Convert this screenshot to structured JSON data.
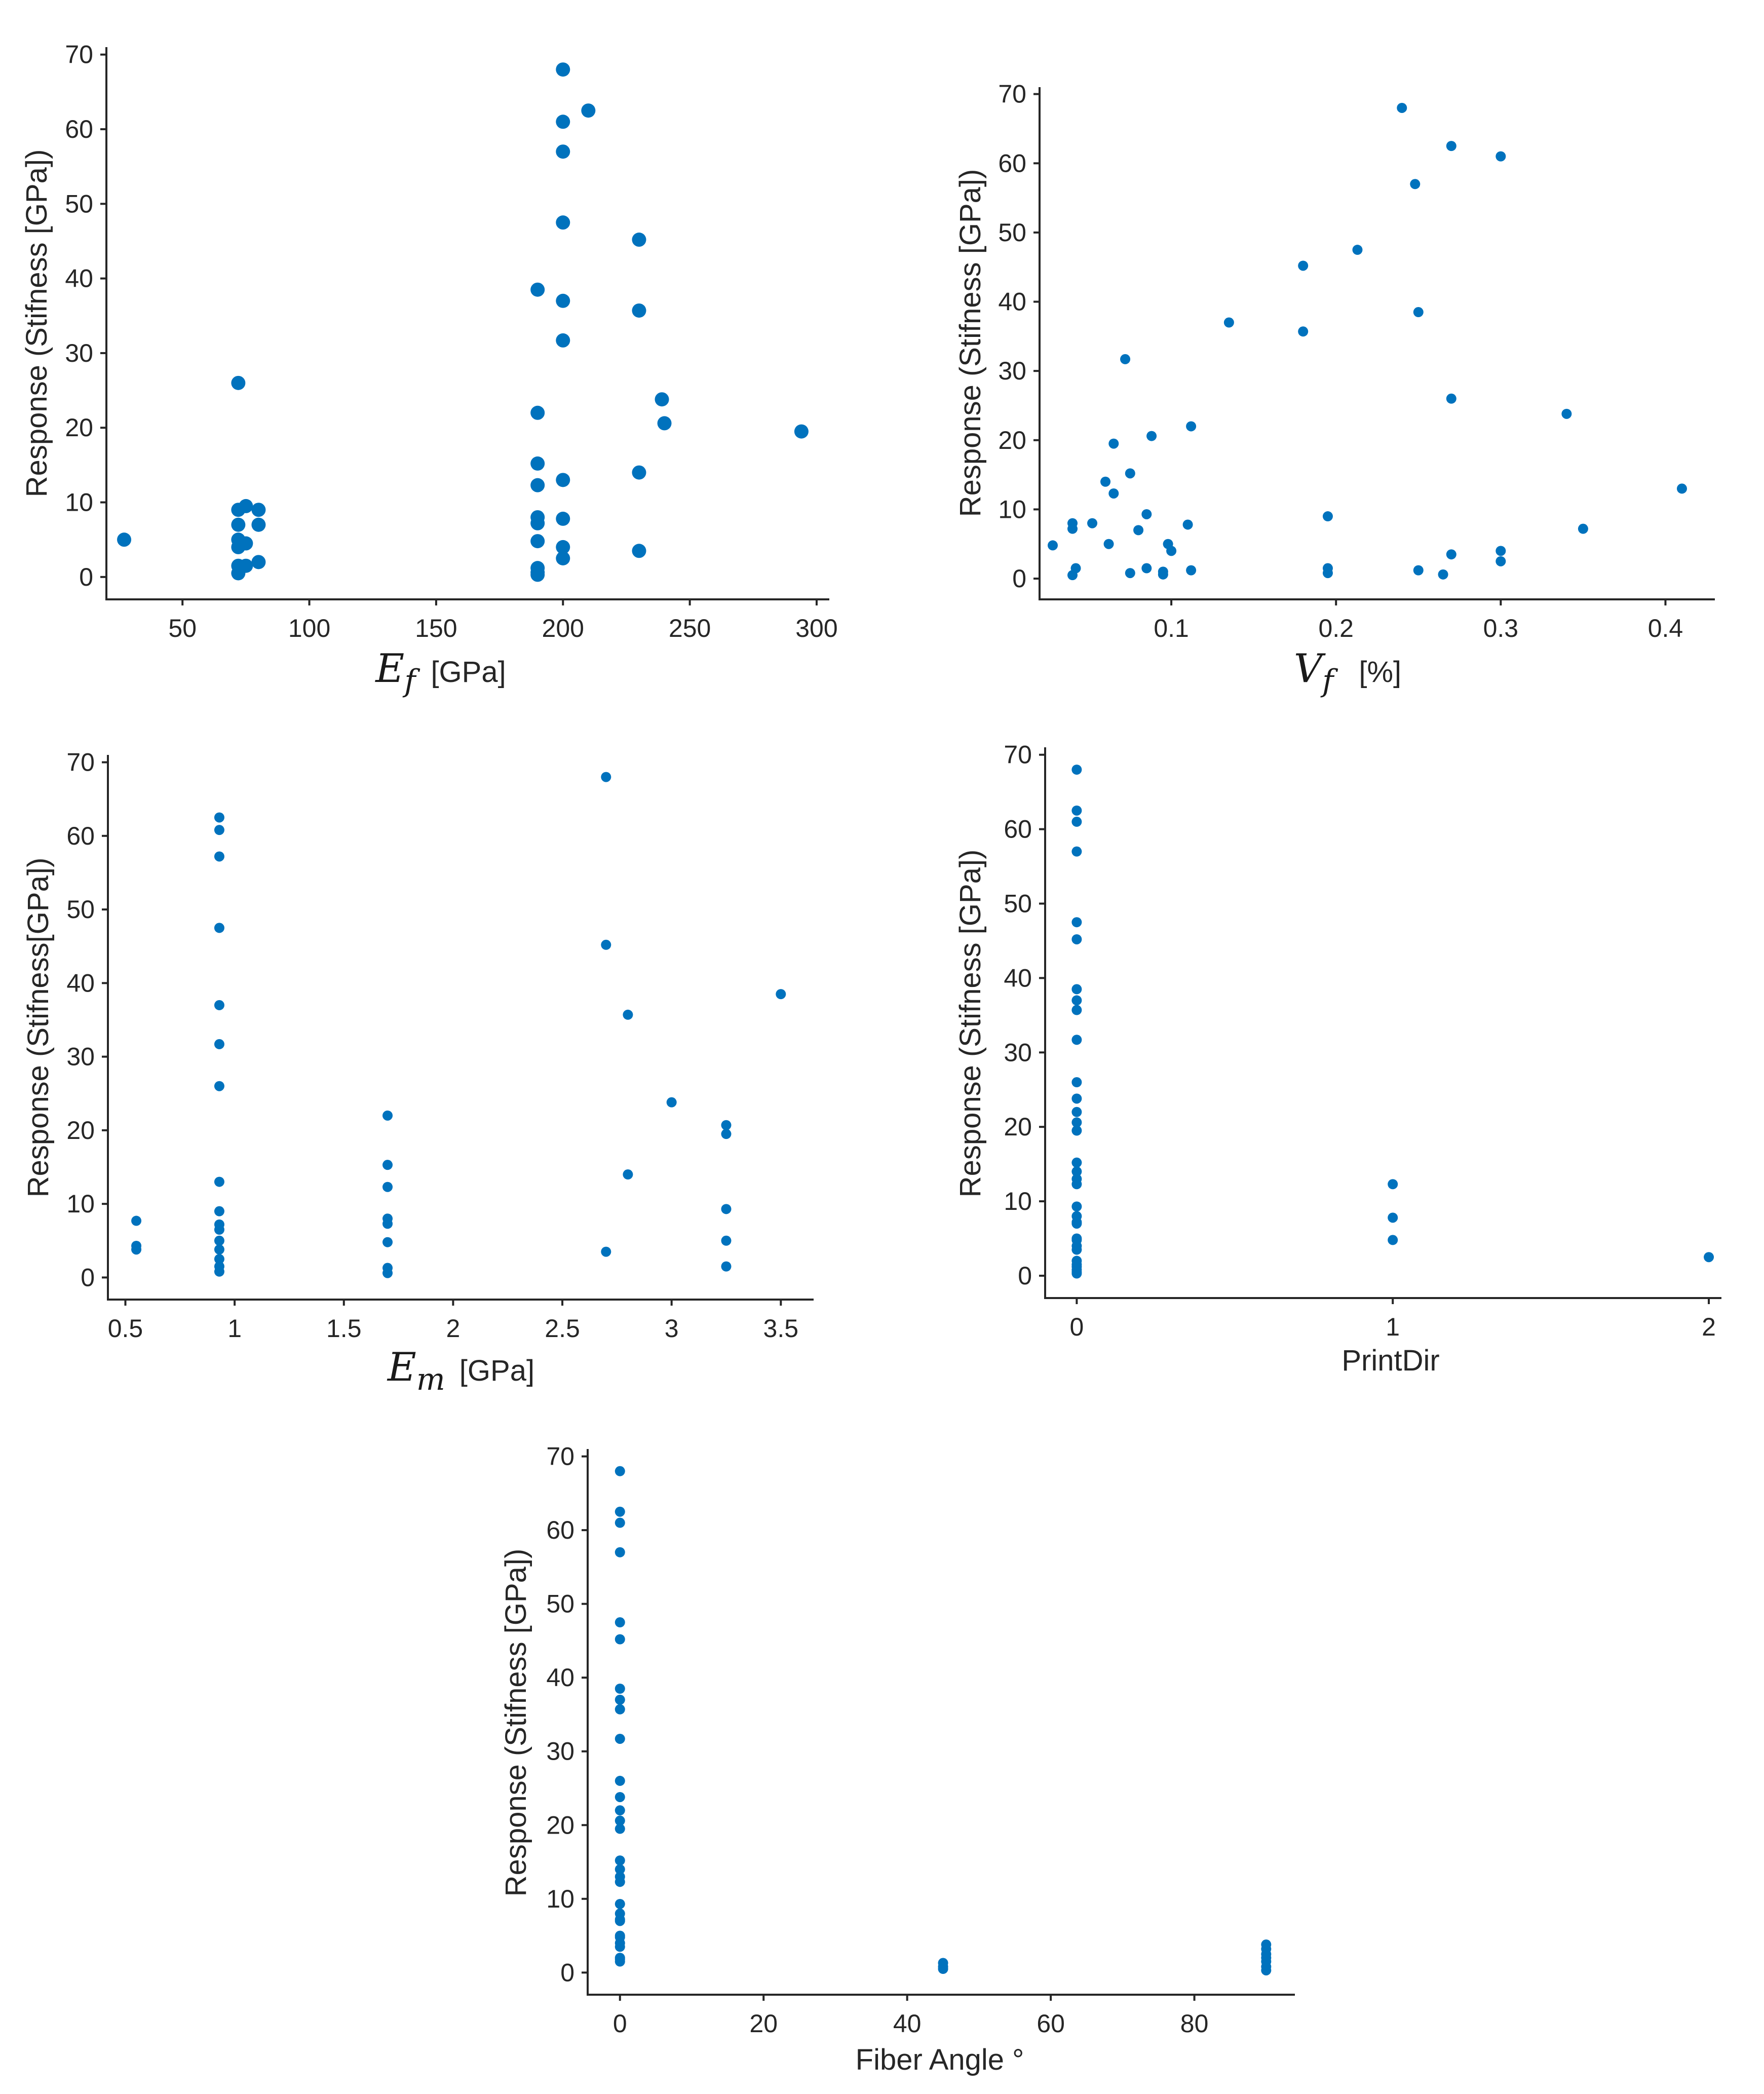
{
  "figure": {
    "background": "#ffffff",
    "axis_color": "#262626",
    "marker_color": "#0072BD"
  },
  "chart_data": [
    {
      "id": "ef",
      "type": "scatter",
      "title": "",
      "ylabel": "Response (Stifness [GPa])",
      "xlabel_math": "E",
      "xlabel_sub": "f",
      "xlabel_unit": "[GPa]",
      "xlim": [
        20,
        305
      ],
      "ylim": [
        -3,
        71
      ],
      "xticks": [
        50,
        100,
        150,
        200,
        250,
        300
      ],
      "yticks": [
        0,
        10,
        20,
        30,
        40,
        50,
        60,
        70
      ],
      "x": [
        27,
        72,
        72,
        72,
        72,
        72,
        72,
        72,
        75,
        75,
        75,
        80,
        80,
        80,
        190,
        190,
        190,
        190,
        190,
        190,
        190,
        190,
        190,
        190,
        200,
        200,
        200,
        200,
        200,
        200,
        200,
        200,
        200,
        200,
        210,
        230,
        230,
        230,
        230,
        239,
        240,
        294
      ],
      "y": [
        5,
        26,
        9,
        7,
        5,
        4,
        1.5,
        0.5,
        9.5,
        4.5,
        1.5,
        9,
        7,
        2,
        38.5,
        22,
        15.2,
        12.3,
        8,
        7.2,
        4.8,
        1.2,
        0.6,
        0.3,
        68,
        61,
        57,
        47.5,
        37,
        31.7,
        13,
        7.8,
        4,
        2.5,
        62.5,
        45.2,
        35.7,
        14,
        3.5,
        23.8,
        20.6,
        19.5
      ]
    },
    {
      "id": "vf",
      "type": "scatter",
      "title": "",
      "ylabel": "Response (Stifness [GPa])",
      "xlabel_math": "V",
      "xlabel_sub": "f",
      "xlabel_unit": "[%]",
      "xlim": [
        0.02,
        0.43
      ],
      "ylim": [
        -3,
        71
      ],
      "xticks": [
        0.1,
        0.2,
        0.3,
        0.4
      ],
      "yticks": [
        0,
        10,
        20,
        30,
        40,
        50,
        60,
        70
      ],
      "x": [
        0.24,
        0.27,
        0.3,
        0.248,
        0.213,
        0.18,
        0.135,
        0.18,
        0.25,
        0.072,
        0.27,
        0.34,
        0.112,
        0.088,
        0.065,
        0.41,
        0.06,
        0.075,
        0.065,
        0.35,
        0.195,
        0.085,
        0.04,
        0.052,
        0.08,
        0.04,
        0.11,
        0.098,
        0.062,
        0.028,
        0.1,
        0.3,
        0.27,
        0.3,
        0.195,
        0.042,
        0.085,
        0.195,
        0.25,
        0.075,
        0.095,
        0.265,
        0.04,
        0.112,
        0.095
      ],
      "y": [
        68,
        62.5,
        61,
        57,
        47.5,
        45.2,
        37,
        35.7,
        38.5,
        31.7,
        26,
        23.8,
        22,
        20.6,
        19.5,
        13,
        14,
        15.2,
        12.3,
        7.2,
        9,
        9.3,
        7.2,
        8,
        7,
        8,
        7.8,
        5,
        5,
        4.8,
        4,
        4,
        3.5,
        2.5,
        1.5,
        1.5,
        1.5,
        0.8,
        1.2,
        0.8,
        0.6,
        0.6,
        0.5,
        1.2,
        1
      ]
    },
    {
      "id": "em",
      "type": "scatter",
      "title": "",
      "ylabel": "Response (Stifness[GPa])",
      "xlabel_math": "E",
      "xlabel_sub": "m",
      "xlabel_unit": "[GPa]",
      "xlim": [
        0.42,
        3.65
      ],
      "ylim": [
        -3,
        71
      ],
      "xticks": [
        0.5,
        1,
        1.5,
        2,
        2.5,
        3,
        3.5
      ],
      "xtick_labels": [
        "0.5",
        "1",
        "1.5",
        "2",
        "2.5",
        "3",
        "3.5"
      ],
      "yticks": [
        0,
        10,
        20,
        30,
        40,
        50,
        60,
        70
      ],
      "x": [
        0.55,
        0.55,
        0.55,
        0.93,
        0.93,
        0.93,
        0.93,
        0.93,
        0.93,
        0.93,
        0.93,
        0.93,
        0.93,
        0.93,
        0.93,
        0.93,
        0.93,
        0.93,
        0.93,
        1.7,
        1.7,
        1.7,
        1.7,
        1.7,
        1.7,
        1.7,
        1.7,
        2.7,
        2.7,
        2.7,
        2.8,
        2.8,
        3.0,
        3.25,
        3.25,
        3.25,
        3.25,
        3.25,
        3.5
      ],
      "y": [
        7.7,
        4.3,
        3.8,
        62.5,
        60.8,
        57.2,
        47.5,
        37,
        31.7,
        26,
        13,
        9,
        7.2,
        6.5,
        5,
        3.8,
        2.5,
        1.5,
        0.8,
        22,
        15.3,
        12.3,
        8,
        7.3,
        4.8,
        1.3,
        0.6,
        68,
        45.2,
        3.5,
        35.7,
        14,
        23.8,
        20.7,
        19.5,
        9.3,
        5,
        1.5,
        38.5
      ]
    },
    {
      "id": "printdir",
      "type": "scatter",
      "title": "",
      "ylabel": "Response (Stifness [GPa])",
      "xlabel": "PrintDir",
      "xlim": [
        -0.1,
        2.04
      ],
      "ylim": [
        -3,
        71
      ],
      "xticks": [
        0,
        1,
        2
      ],
      "yticks": [
        0,
        10,
        20,
        30,
        40,
        50,
        60,
        70
      ],
      "x": [
        0,
        0,
        0,
        0,
        0,
        0,
        0,
        0,
        0,
        0,
        0,
        0,
        0,
        0,
        0,
        0,
        0,
        0,
        0,
        0,
        0,
        0,
        0,
        0,
        0,
        0,
        0,
        0,
        0,
        0,
        0,
        0,
        0,
        1,
        1,
        1,
        2
      ],
      "y": [
        68,
        62.5,
        61,
        57,
        47.5,
        45.2,
        38.5,
        37,
        35.7,
        31.7,
        26,
        23.8,
        22,
        20.6,
        19.5,
        15.2,
        14,
        13,
        12.3,
        9.3,
        8,
        7.2,
        7,
        5,
        4.8,
        4,
        3.5,
        2,
        1.5,
        1.2,
        0.8,
        0.5,
        0.3,
        12.3,
        7.8,
        4.8,
        2.5
      ]
    },
    {
      "id": "fiberangle",
      "type": "scatter",
      "title": "",
      "ylabel": "Response (Stifness [GPa])",
      "xlabel": "Fiber Angle °",
      "xlim": [
        -4.5,
        94
      ],
      "ylim": [
        -3,
        71
      ],
      "xticks": [
        0,
        20,
        40,
        60,
        80
      ],
      "yticks": [
        0,
        10,
        20,
        30,
        40,
        50,
        60,
        70
      ],
      "x": [
        0,
        0,
        0,
        0,
        0,
        0,
        0,
        0,
        0,
        0,
        0,
        0,
        0,
        0,
        0,
        0,
        0,
        0,
        0,
        0,
        0,
        0,
        0,
        0,
        0,
        0,
        0,
        0,
        0,
        0,
        45,
        45,
        45,
        90,
        90,
        90,
        90,
        90,
        90,
        90
      ],
      "y": [
        68,
        62.5,
        61,
        57,
        47.5,
        45.2,
        38.5,
        37,
        35.7,
        31.7,
        26,
        23.8,
        22,
        20.6,
        19.5,
        15.2,
        14,
        13,
        12.3,
        9.3,
        8,
        7.2,
        7,
        5,
        4.8,
        4,
        3.5,
        2,
        1.5,
        1.8,
        1.3,
        0.8,
        0.5,
        3.8,
        3.2,
        2.5,
        2,
        1.5,
        0.8,
        0.3
      ]
    }
  ]
}
